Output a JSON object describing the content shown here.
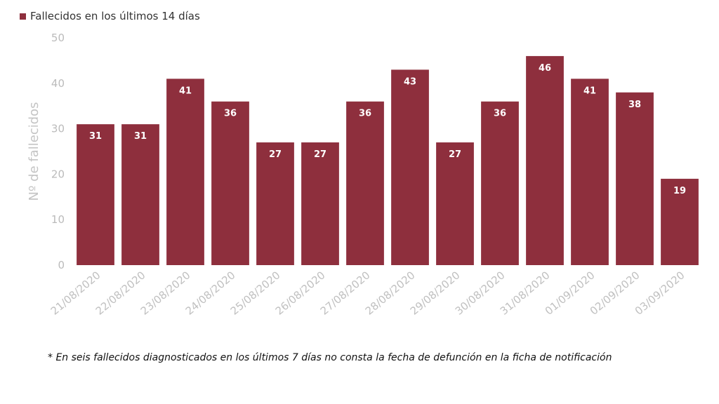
{
  "chart_data": {
    "type": "bar",
    "title": "",
    "xlabel": "",
    "ylabel": "Nº de fallecidos",
    "ylim": [
      0,
      50
    ],
    "yticks": [
      0,
      10,
      20,
      30,
      40,
      50
    ],
    "grid": false,
    "legend_position": "top-left",
    "categories": [
      "21/08/2020",
      "22/08/2020",
      "23/08/2020",
      "24/08/2020",
      "25/08/2020",
      "26/08/2020",
      "27/08/2020",
      "28/08/2020",
      "29/08/2020",
      "30/08/2020",
      "31/08/2020",
      "01/09/2020",
      "02/09/2020",
      "03/09/2020"
    ],
    "series": [
      {
        "name": "Fallecidos en los últimos 14 días",
        "color": "#8e2f3d",
        "values": [
          31,
          31,
          41,
          36,
          27,
          27,
          36,
          43,
          27,
          36,
          46,
          41,
          38,
          19
        ]
      }
    ]
  },
  "footnote": "* En seis fallecidos diagnosticados en los últimos 7 días no consta la fecha de defunción en la ficha de notificación"
}
